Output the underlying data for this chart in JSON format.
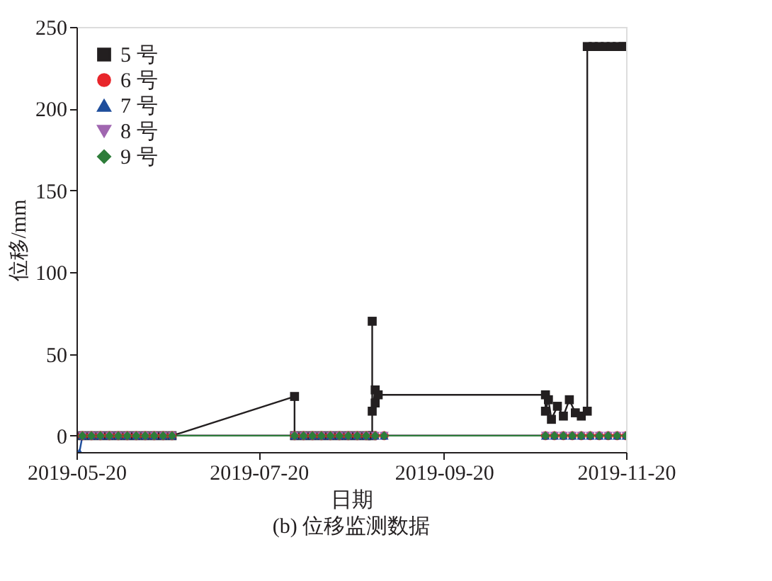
{
  "chart_data": {
    "type": "line",
    "xlabel": "日期",
    "ylabel": "位移/mm",
    "annotations": [
      "(b) 位移监测数据"
    ],
    "xlim": [
      "2019-05-20",
      "2019-11-20"
    ],
    "xticks": [
      "2019-05-20",
      "2019-07-20",
      "2019-09-20",
      "2019-11-20"
    ],
    "ylim": [
      -10,
      250
    ],
    "yticks": [
      0,
      50,
      100,
      150,
      200,
      250
    ],
    "grid": false,
    "legend": "top left",
    "line_style": "solid",
    "series": [
      {
        "name": "5 号",
        "color": "#231f20",
        "marker": "square",
        "x": [
          "2019-05-22",
          "2019-05-25",
          "2019-05-28",
          "2019-05-31",
          "2019-06-03",
          "2019-06-06",
          "2019-06-09",
          "2019-06-12",
          "2019-06-15",
          "2019-06-18",
          "2019-06-21",
          "2019-08-01",
          "2019-08-01",
          "2019-08-04",
          "2019-08-07",
          "2019-08-10",
          "2019-08-13",
          "2019-08-16",
          "2019-08-19",
          "2019-08-22",
          "2019-08-25",
          "2019-08-27",
          "2019-08-27",
          "2019-08-27",
          "2019-08-28",
          "2019-08-28",
          "2019-08-29",
          "2019-10-24",
          "2019-10-24",
          "2019-10-25",
          "2019-10-26",
          "2019-10-28",
          "2019-10-30",
          "2019-11-01",
          "2019-11-03",
          "2019-11-05",
          "2019-11-07",
          "2019-11-07",
          "2019-11-09",
          "2019-11-11",
          "2019-11-13",
          "2019-11-15",
          "2019-11-17",
          "2019-11-19",
          "2019-11-20"
        ],
        "values": [
          0,
          0,
          0,
          0,
          0,
          0,
          0,
          0,
          0,
          0,
          0,
          24,
          0,
          0,
          0,
          0,
          0,
          0,
          0,
          0,
          0,
          0,
          70,
          15,
          28,
          20,
          25,
          25,
          15,
          22,
          10,
          18,
          12,
          22,
          14,
          12,
          15,
          238,
          238,
          238,
          238,
          238,
          238,
          238,
          238
        ]
      },
      {
        "name": "6 号",
        "color": "#e8262b",
        "marker": "circle",
        "x": [
          "2019-05-22",
          "2019-05-25",
          "2019-05-28",
          "2019-05-31",
          "2019-06-03",
          "2019-06-06",
          "2019-06-09",
          "2019-06-12",
          "2019-06-15",
          "2019-06-18",
          "2019-06-21",
          "2019-08-01",
          "2019-08-04",
          "2019-08-07",
          "2019-08-10",
          "2019-08-13",
          "2019-08-16",
          "2019-08-19",
          "2019-08-22",
          "2019-08-25",
          "2019-08-28",
          "2019-08-31",
          "2019-10-24",
          "2019-10-27",
          "2019-10-30",
          "2019-11-02",
          "2019-11-05",
          "2019-11-08",
          "2019-11-11",
          "2019-11-14",
          "2019-11-17",
          "2019-11-20"
        ],
        "values": [
          0,
          0,
          0,
          0,
          0,
          0,
          0,
          0,
          0,
          0,
          0,
          0,
          0,
          0,
          0,
          0,
          0,
          0,
          0,
          0,
          0,
          0,
          0,
          0,
          0,
          0,
          0,
          0,
          0,
          0,
          0,
          0
        ]
      },
      {
        "name": "7 号",
        "color": "#1f4e9c",
        "marker": "triangle",
        "x": [
          "2019-05-21",
          "2019-05-22",
          "2019-05-25",
          "2019-05-28",
          "2019-05-31",
          "2019-06-03",
          "2019-06-06",
          "2019-06-09",
          "2019-06-12",
          "2019-06-15",
          "2019-06-18",
          "2019-06-21",
          "2019-08-01",
          "2019-08-04",
          "2019-08-07",
          "2019-08-10",
          "2019-08-13",
          "2019-08-16",
          "2019-08-19",
          "2019-08-22",
          "2019-08-25",
          "2019-08-28",
          "2019-08-31",
          "2019-10-24",
          "2019-10-27",
          "2019-10-30",
          "2019-11-02",
          "2019-11-05",
          "2019-11-08",
          "2019-11-11",
          "2019-11-14",
          "2019-11-17",
          "2019-11-20"
        ],
        "values": [
          -10,
          0,
          0,
          0,
          0,
          0,
          0,
          0,
          0,
          0,
          0,
          0,
          0,
          0,
          0,
          0,
          0,
          0,
          0,
          0,
          0,
          0,
          0,
          0,
          0,
          0,
          0,
          0,
          0,
          0,
          0,
          0,
          0
        ]
      },
      {
        "name": "8 号",
        "color": "#a066b0",
        "marker": "triangle-down",
        "x": [
          "2019-05-22",
          "2019-05-25",
          "2019-05-28",
          "2019-05-31",
          "2019-06-03",
          "2019-06-06",
          "2019-06-09",
          "2019-06-12",
          "2019-06-15",
          "2019-06-18",
          "2019-06-21",
          "2019-08-01",
          "2019-08-04",
          "2019-08-07",
          "2019-08-10",
          "2019-08-13",
          "2019-08-16",
          "2019-08-19",
          "2019-08-22",
          "2019-08-25",
          "2019-08-28",
          "2019-08-31",
          "2019-10-24",
          "2019-10-27",
          "2019-10-30",
          "2019-11-02",
          "2019-11-05",
          "2019-11-08",
          "2019-11-11",
          "2019-11-14",
          "2019-11-17",
          "2019-11-20"
        ],
        "values": [
          0,
          0,
          0,
          0,
          0,
          0,
          0,
          0,
          0,
          0,
          0,
          0,
          0,
          0,
          0,
          0,
          0,
          0,
          0,
          0,
          0,
          0,
          0,
          0,
          0,
          0,
          0,
          0,
          0,
          0,
          0,
          0
        ]
      },
      {
        "name": "9 号",
        "color": "#2e7d3a",
        "marker": "diamond",
        "x": [
          "2019-05-22",
          "2019-05-25",
          "2019-05-28",
          "2019-05-31",
          "2019-06-03",
          "2019-06-06",
          "2019-06-09",
          "2019-06-12",
          "2019-06-15",
          "2019-06-18",
          "2019-06-21",
          "2019-08-01",
          "2019-08-04",
          "2019-08-07",
          "2019-08-10",
          "2019-08-13",
          "2019-08-16",
          "2019-08-19",
          "2019-08-22",
          "2019-08-25",
          "2019-08-28",
          "2019-08-31",
          "2019-10-24",
          "2019-10-27",
          "2019-10-30",
          "2019-11-02",
          "2019-11-05",
          "2019-11-08",
          "2019-11-11",
          "2019-11-14",
          "2019-11-17",
          "2019-11-20"
        ],
        "values": [
          0,
          0,
          0,
          0,
          0,
          0,
          0,
          0,
          0,
          0,
          0,
          0,
          0,
          0,
          0,
          0,
          0,
          0,
          0,
          0,
          0,
          0,
          0,
          0,
          0,
          0,
          0,
          0,
          0,
          0,
          0,
          0
        ]
      }
    ]
  }
}
